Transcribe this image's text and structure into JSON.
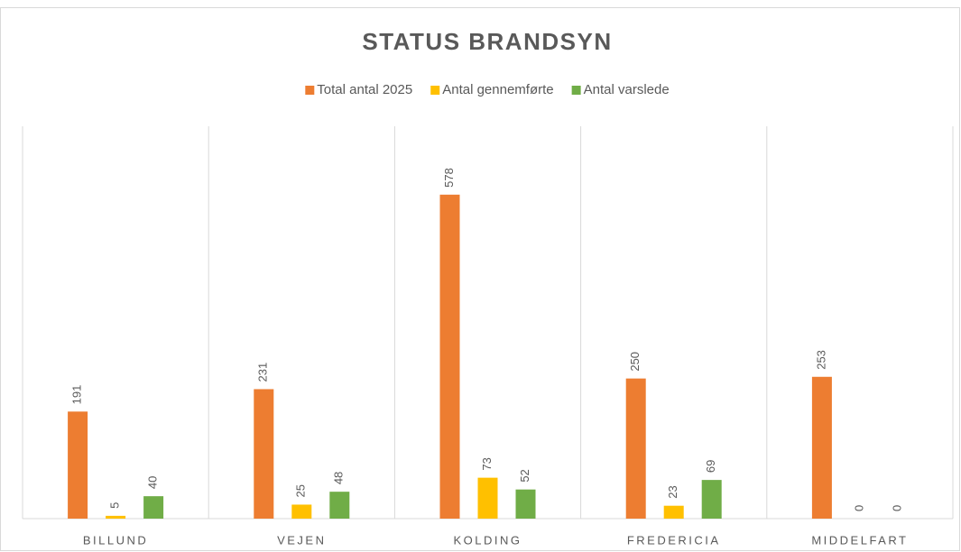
{
  "chart_data": {
    "type": "bar",
    "title": "STATUS BRANDSYN",
    "categories": [
      "BILLUND",
      "VEJEN",
      "KOLDING",
      "FREDERICIA",
      "MIDDELFART"
    ],
    "series": [
      {
        "name": "Total antal 2025",
        "color": "#ED7D31",
        "values": [
          191,
          231,
          578,
          250,
          253
        ]
      },
      {
        "name": "Antal gennemførte",
        "color": "#FFC000",
        "values": [
          5,
          25,
          73,
          23,
          0
        ]
      },
      {
        "name": "Antal varslede",
        "color": "#70AD47",
        "values": [
          40,
          48,
          52,
          69,
          0
        ]
      }
    ],
    "ylim": [
      0,
      700
    ],
    "legend": "top"
  }
}
